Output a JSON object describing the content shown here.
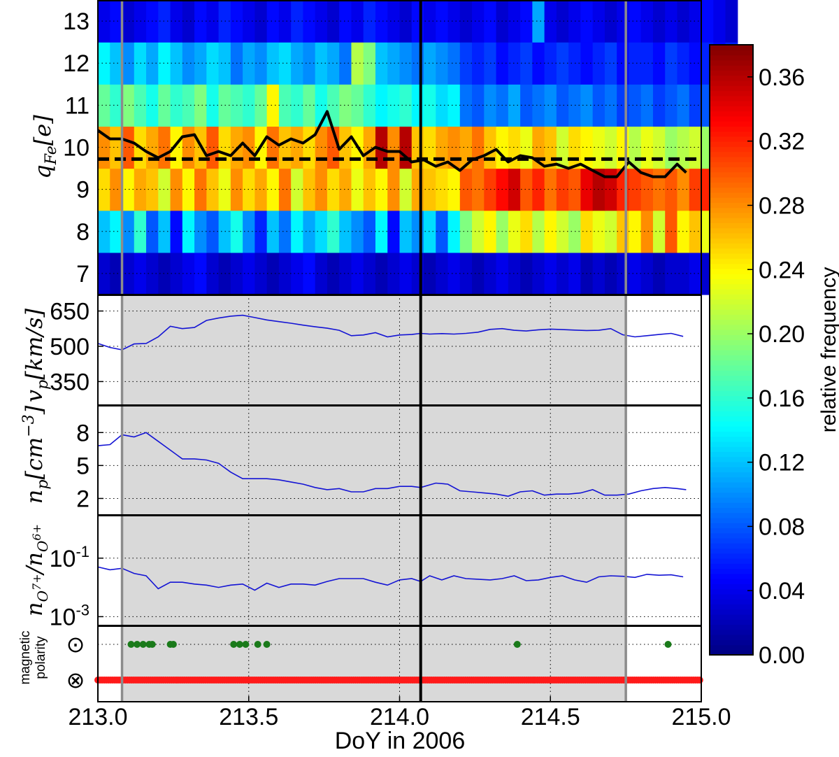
{
  "xaxis": {
    "label": "DoY in 2006",
    "range": [
      213.0,
      215.0
    ],
    "ticks": [
      213.0,
      213.5,
      214.0,
      214.5,
      215.0
    ],
    "tick_labels": [
      "213.0",
      "213.5",
      "214.0",
      "214.5",
      "215.0"
    ]
  },
  "markers": {
    "shaded_interval": [
      213.08,
      214.75
    ],
    "gray_lines": [
      213.08,
      214.75
    ],
    "black_line": 214.07,
    "shade_color": "#d9d9d9",
    "gray_line_color": "#8c8c8c"
  },
  "colorbar": {
    "label": "relative frequency",
    "range": [
      0.0,
      0.38
    ],
    "ticks": [
      0.0,
      0.04,
      0.08,
      0.12,
      0.16,
      0.2,
      0.24,
      0.28,
      0.32,
      0.36
    ],
    "tick_labels": [
      "0.00",
      "0.04",
      "0.08",
      "0.12",
      "0.16",
      "0.20",
      "0.24",
      "0.28",
      "0.32",
      "0.36"
    ],
    "colormap": "jet"
  },
  "chart_data": [
    {
      "type": "heatmap",
      "ylabel": "q_Fe[e]",
      "ylim": [
        6.5,
        13.5
      ],
      "yticks": [
        7,
        8,
        9,
        10,
        11,
        12,
        13
      ],
      "x_start": 213.0,
      "bin_width": 0.04,
      "charge_states": [
        7,
        8,
        9,
        10,
        11,
        12,
        13
      ],
      "frequency_rows": [
        [
          0.03,
          0.02,
          0.03,
          0.04,
          0.03,
          0.02,
          0.03,
          0.04,
          0.05,
          0.03,
          0.02,
          0.03,
          0.04,
          0.03,
          0.02,
          0.03,
          0.04,
          0.05,
          0.03,
          0.02,
          0.03,
          0.04,
          0.03,
          0.02,
          0.03,
          0.04,
          0.03,
          0.02,
          0.03,
          0.04,
          0.03,
          0.02,
          0.03,
          0.04,
          0.03,
          0.02,
          0.03,
          0.04,
          0.03,
          0.04,
          0.02,
          0.03,
          0.02,
          0.03,
          0.04,
          0.03,
          0.02,
          0.03,
          0.03,
          0.04,
          0.03,
          0.02,
          0.03
        ],
        [
          0.12,
          0.14,
          0.1,
          0.16,
          0.08,
          0.12,
          0.05,
          0.14,
          0.1,
          0.08,
          0.12,
          0.15,
          0.1,
          0.06,
          0.12,
          0.09,
          0.14,
          0.11,
          0.13,
          0.16,
          0.12,
          0.1,
          0.08,
          0.14,
          0.05,
          0.12,
          0.1,
          0.13,
          0.08,
          0.14,
          0.19,
          0.22,
          0.24,
          0.2,
          0.23,
          0.25,
          0.21,
          0.24,
          0.22,
          0.2,
          0.25,
          0.23,
          0.22,
          0.26,
          0.24,
          0.28,
          0.22,
          0.3,
          0.24,
          0.26,
          0.23,
          0.22,
          0.2
        ],
        [
          0.25,
          0.28,
          0.24,
          0.27,
          0.26,
          0.22,
          0.28,
          0.24,
          0.29,
          0.26,
          0.23,
          0.28,
          0.25,
          0.27,
          0.24,
          0.29,
          0.22,
          0.26,
          0.28,
          0.25,
          0.27,
          0.23,
          0.26,
          0.24,
          0.28,
          0.22,
          0.27,
          0.26,
          0.25,
          0.24,
          0.3,
          0.29,
          0.31,
          0.33,
          0.35,
          0.3,
          0.32,
          0.29,
          0.31,
          0.3,
          0.34,
          0.36,
          0.35,
          0.32,
          0.31,
          0.3,
          0.29,
          0.3,
          0.28,
          0.31,
          0.32,
          0.3,
          0.28
        ],
        [
          0.28,
          0.26,
          0.3,
          0.25,
          0.27,
          0.29,
          0.24,
          0.28,
          0.26,
          0.3,
          0.25,
          0.27,
          0.28,
          0.24,
          0.29,
          0.26,
          0.27,
          0.25,
          0.28,
          0.3,
          0.26,
          0.24,
          0.27,
          0.36,
          0.28,
          0.36,
          0.26,
          0.25,
          0.27,
          0.28,
          0.27,
          0.29,
          0.26,
          0.24,
          0.25,
          0.23,
          0.27,
          0.26,
          0.22,
          0.25,
          0.24,
          0.23,
          0.22,
          0.24,
          0.21,
          0.23,
          0.22,
          0.2,
          0.21,
          0.22,
          0.2,
          0.21,
          0.19
        ],
        [
          0.18,
          0.16,
          0.19,
          0.17,
          0.15,
          0.18,
          0.16,
          0.17,
          0.19,
          0.15,
          0.18,
          0.17,
          0.16,
          0.18,
          0.24,
          0.17,
          0.16,
          0.18,
          0.15,
          0.17,
          0.19,
          0.18,
          0.16,
          0.14,
          0.15,
          0.16,
          0.14,
          0.15,
          0.13,
          0.14,
          0.09,
          0.08,
          0.1,
          0.09,
          0.11,
          0.08,
          0.09,
          0.1,
          0.08,
          0.09,
          0.1,
          0.08,
          0.09,
          0.07,
          0.08,
          0.09,
          0.07,
          0.08,
          0.09,
          0.07,
          0.08,
          0.06,
          0.08
        ],
        [
          0.14,
          0.12,
          0.1,
          0.13,
          0.11,
          0.14,
          0.12,
          0.1,
          0.11,
          0.13,
          0.12,
          0.09,
          0.11,
          0.1,
          0.12,
          0.13,
          0.11,
          0.1,
          0.12,
          0.11,
          0.09,
          0.21,
          0.19,
          0.12,
          0.11,
          0.1,
          0.09,
          0.11,
          0.1,
          0.09,
          0.07,
          0.06,
          0.07,
          0.05,
          0.06,
          0.07,
          0.05,
          0.06,
          0.07,
          0.06,
          0.05,
          0.06,
          0.07,
          0.05,
          0.06,
          0.06,
          0.05,
          0.07,
          0.06,
          0.05,
          0.06,
          0.05,
          0.06
        ],
        [
          0.04,
          0.05,
          0.03,
          0.04,
          0.05,
          0.06,
          0.04,
          0.03,
          0.05,
          0.04,
          0.06,
          0.05,
          0.04,
          0.03,
          0.05,
          0.04,
          0.06,
          0.05,
          0.04,
          0.03,
          0.05,
          0.04,
          0.06,
          0.05,
          0.04,
          0.03,
          0.05,
          0.04,
          0.05,
          0.04,
          0.03,
          0.04,
          0.05,
          0.03,
          0.04,
          0.05,
          0.11,
          0.04,
          0.03,
          0.04,
          0.05,
          0.04,
          0.03,
          0.04,
          0.05,
          0.04,
          0.03,
          0.04,
          0.03,
          0.04,
          0.05,
          0.04,
          0.03
        ]
      ],
      "mean_charge_x": [
        213.0,
        213.04,
        213.08,
        213.12,
        213.16,
        213.2,
        213.24,
        213.28,
        213.32,
        213.36,
        213.4,
        213.44,
        213.48,
        213.52,
        213.56,
        213.6,
        213.64,
        213.68,
        213.72,
        213.76,
        213.8,
        213.84,
        213.88,
        213.92,
        213.96,
        214.0,
        214.04,
        214.08,
        214.12,
        214.16,
        214.2,
        214.24,
        214.28,
        214.32,
        214.36,
        214.4,
        214.44,
        214.48,
        214.52,
        214.56,
        214.6,
        214.64,
        214.68,
        214.72,
        214.76,
        214.8,
        214.84,
        214.88,
        214.92,
        214.95
      ],
      "mean_charge_y": [
        10.4,
        10.2,
        10.2,
        10.1,
        9.9,
        9.75,
        9.9,
        10.25,
        10.3,
        9.8,
        9.9,
        9.8,
        10.1,
        9.8,
        10.25,
        10.05,
        10.2,
        10.1,
        10.3,
        10.85,
        9.95,
        10.25,
        9.8,
        10.0,
        9.9,
        9.9,
        9.65,
        9.7,
        9.55,
        9.65,
        9.45,
        9.7,
        9.8,
        9.95,
        9.65,
        9.8,
        9.75,
        9.55,
        9.6,
        9.5,
        9.6,
        9.45,
        9.3,
        9.3,
        9.65,
        9.4,
        9.3,
        9.3,
        9.6,
        9.4
      ],
      "dashed_level": 9.72
    },
    {
      "type": "line",
      "ylabel": "v_p[km/s]",
      "ylim": [
        250,
        720
      ],
      "yticks": [
        350,
        500,
        650
      ],
      "x": [
        213.0,
        213.04,
        213.08,
        213.12,
        213.16,
        213.2,
        213.24,
        213.28,
        213.32,
        213.36,
        213.4,
        213.44,
        213.48,
        213.52,
        213.56,
        213.6,
        213.64,
        213.68,
        213.72,
        213.76,
        213.8,
        213.84,
        213.88,
        213.92,
        213.96,
        214.0,
        214.04,
        214.07,
        214.1,
        214.14,
        214.18,
        214.22,
        214.26,
        214.3,
        214.34,
        214.38,
        214.42,
        214.46,
        214.5,
        214.54,
        214.58,
        214.62,
        214.66,
        214.7,
        214.74,
        214.78,
        214.82,
        214.86,
        214.9,
        214.94
      ],
      "y": [
        512,
        495,
        485,
        510,
        512,
        540,
        585,
        575,
        580,
        610,
        620,
        628,
        632,
        622,
        612,
        605,
        598,
        590,
        583,
        577,
        568,
        545,
        548,
        558,
        540,
        548,
        550,
        555,
        552,
        554,
        552,
        555,
        560,
        572,
        575,
        568,
        565,
        570,
        573,
        571,
        569,
        567,
        568,
        575,
        549,
        540,
        545,
        550,
        555,
        542
      ]
    },
    {
      "type": "line",
      "ylabel": "n_p[cm^-3]",
      "ylim": [
        0.5,
        10.5
      ],
      "yticks": [
        2,
        5,
        8
      ],
      "x": [
        213.0,
        213.04,
        213.08,
        213.12,
        213.16,
        213.2,
        213.24,
        213.28,
        213.32,
        213.36,
        213.4,
        213.44,
        213.48,
        213.52,
        213.56,
        213.6,
        213.64,
        213.68,
        213.72,
        213.76,
        213.8,
        213.84,
        213.88,
        213.92,
        213.96,
        214.0,
        214.04,
        214.07,
        214.12,
        214.16,
        214.2,
        214.24,
        214.28,
        214.32,
        214.36,
        214.4,
        214.44,
        214.48,
        214.52,
        214.56,
        214.6,
        214.64,
        214.68,
        214.72,
        214.76,
        214.8,
        214.84,
        214.88,
        214.92,
        214.95
      ],
      "y": [
        6.8,
        6.9,
        7.8,
        7.6,
        8.0,
        7.2,
        6.4,
        5.6,
        5.6,
        5.5,
        5.2,
        4.4,
        3.8,
        3.8,
        3.8,
        3.7,
        3.5,
        3.3,
        3.0,
        2.8,
        2.9,
        2.6,
        2.6,
        2.9,
        2.9,
        3.1,
        3.1,
        3.0,
        3.4,
        3.3,
        2.7,
        2.6,
        2.5,
        2.4,
        2.2,
        2.6,
        2.7,
        2.3,
        2.4,
        2.4,
        2.5,
        2.8,
        2.3,
        2.3,
        2.4,
        2.7,
        2.9,
        3.0,
        2.9,
        2.8
      ]
    },
    {
      "type": "line",
      "ylabel": "n_O7+/n_O6+",
      "yscale": "log",
      "ylim": [
        0.0005,
        3.0
      ],
      "yticks": [
        0.001,
        0.1
      ],
      "tick_labels": [
        "10^-3",
        "10^-1"
      ],
      "x": [
        213.0,
        213.04,
        213.08,
        213.12,
        213.16,
        213.2,
        213.24,
        213.28,
        213.32,
        213.36,
        213.4,
        213.44,
        213.48,
        213.52,
        213.56,
        213.6,
        213.64,
        213.68,
        213.72,
        213.76,
        213.8,
        213.84,
        213.88,
        213.92,
        213.96,
        214.0,
        214.04,
        214.07,
        214.1,
        214.14,
        214.18,
        214.22,
        214.26,
        214.3,
        214.34,
        214.38,
        214.42,
        214.46,
        214.5,
        214.54,
        214.58,
        214.62,
        214.66,
        214.7,
        214.74,
        214.78,
        214.82,
        214.86,
        214.9,
        214.94
      ],
      "y": [
        0.05,
        0.04,
        0.045,
        0.03,
        0.025,
        0.009,
        0.015,
        0.015,
        0.013,
        0.012,
        0.01,
        0.012,
        0.013,
        0.008,
        0.014,
        0.01,
        0.013,
        0.013,
        0.012,
        0.016,
        0.02,
        0.02,
        0.02,
        0.015,
        0.012,
        0.018,
        0.02,
        0.016,
        0.025,
        0.018,
        0.025,
        0.02,
        0.019,
        0.018,
        0.02,
        0.025,
        0.017,
        0.018,
        0.022,
        0.025,
        0.018,
        0.015,
        0.023,
        0.025,
        0.024,
        0.022,
        0.028,
        0.026,
        0.027,
        0.023
      ]
    },
    {
      "type": "scatter",
      "ylabel_lines": [
        "magnetic",
        "polarity"
      ],
      "categories": [
        "⊙",
        "⊗"
      ],
      "outward_x": [
        213.11,
        213.13,
        213.15,
        213.17,
        213.18,
        213.24,
        213.25,
        213.45,
        213.47,
        213.49,
        213.53,
        213.56,
        214.39,
        214.89
      ],
      "inward_x_start": 213.0,
      "inward_x_end": 215.0,
      "inward_step": 0.007,
      "colors": {
        "outward": "#1a7a1a",
        "inward": "#ff1a1a"
      }
    }
  ]
}
